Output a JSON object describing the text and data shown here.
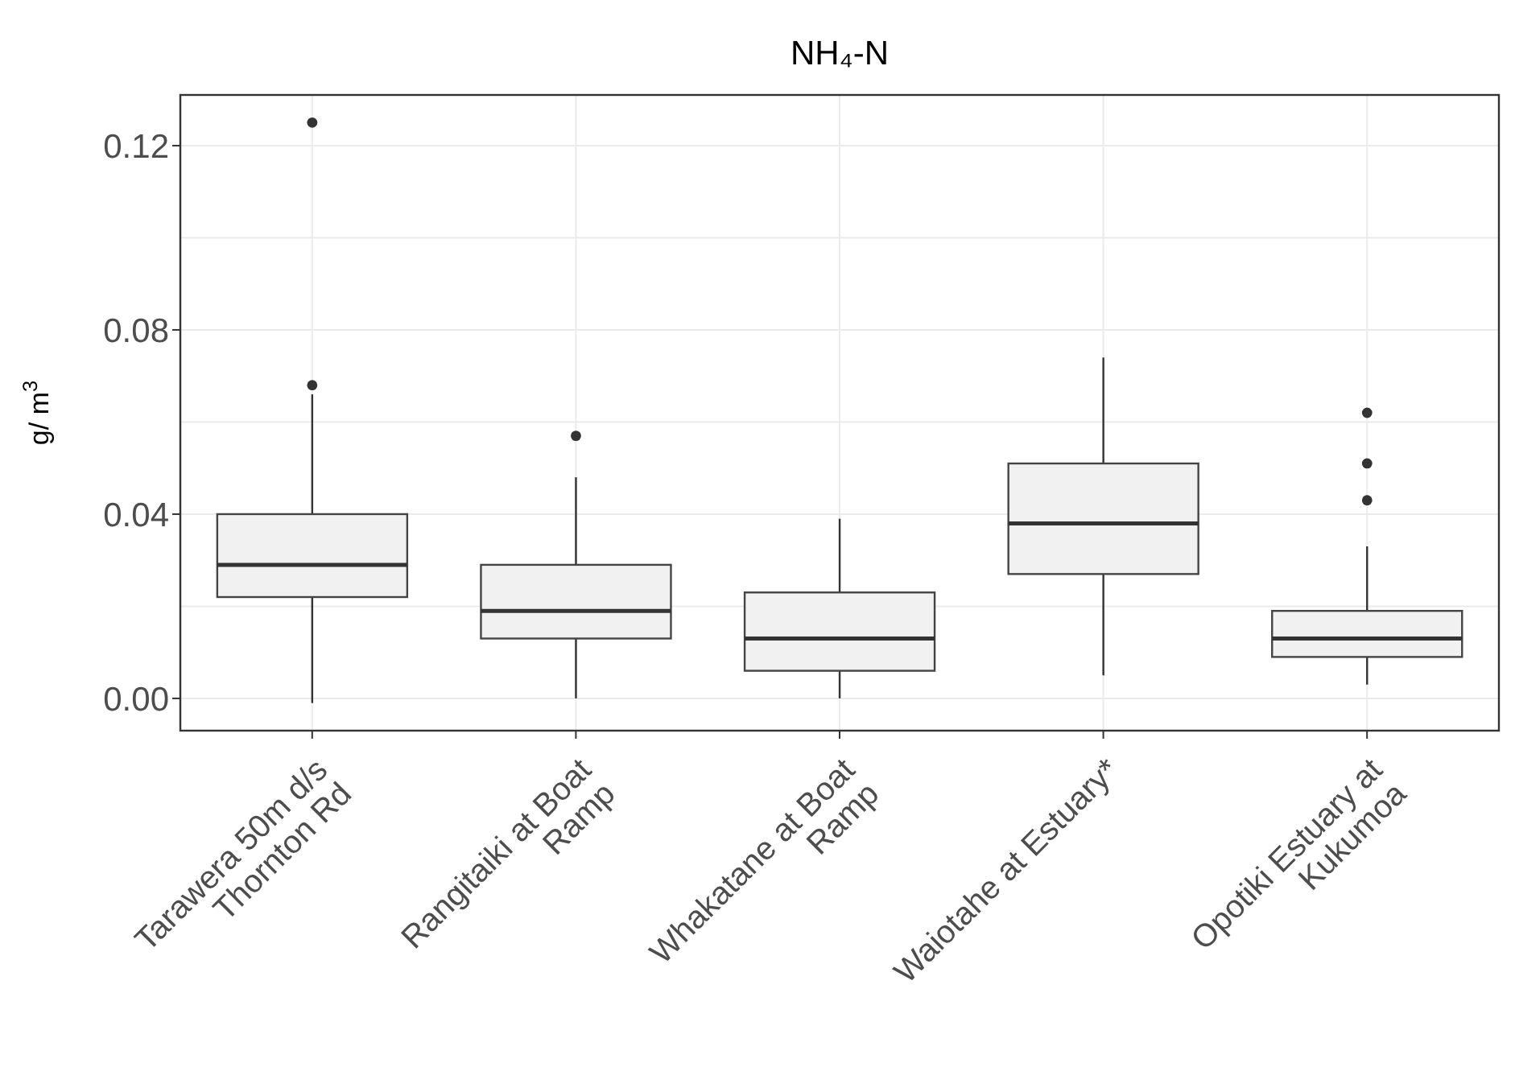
{
  "chart_data": {
    "type": "box",
    "title": "NH₄-N",
    "ylabel": "g/ m$^{3}$",
    "categories": [
      "Tarawera 50m d/s Thornton Rd",
      "Rangitaiki at Boat Ramp",
      "Whakatane at Boat Ramp",
      "Waiotahe at Estuary*",
      "Opotiki Estuary at Kukumoa"
    ],
    "boxes": [
      {
        "low": -0.001,
        "q1": 0.022,
        "median": 0.029,
        "q3": 0.04,
        "high": 0.066,
        "outliers": [
          0.068,
          0.125
        ]
      },
      {
        "low": 0.0,
        "q1": 0.013,
        "median": 0.019,
        "q3": 0.029,
        "high": 0.048,
        "outliers": [
          0.057
        ]
      },
      {
        "low": 0.0,
        "q1": 0.006,
        "median": 0.013,
        "q3": 0.023,
        "high": 0.039
      },
      {
        "low": 0.005,
        "q1": 0.027,
        "median": 0.038,
        "q3": 0.051,
        "high": 0.074
      },
      {
        "low": 0.003,
        "q1": 0.009,
        "median": 0.013,
        "q3": 0.019,
        "high": 0.033,
        "outliers": [
          0.043,
          0.051,
          0.062
        ]
      }
    ],
    "ylim": [
      -0.007,
      0.131
    ],
    "yticks": [
      {
        "value": 0,
        "label": "0.00"
      },
      {
        "value": 0.04,
        "label": "0.04"
      },
      {
        "value": 0.08,
        "label": "0.08"
      },
      {
        "value": 0.12,
        "label": "0.12"
      }
    ],
    "grid": true
  }
}
